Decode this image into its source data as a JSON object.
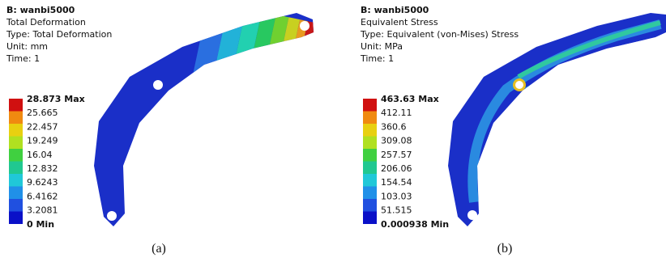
{
  "panels": [
    {
      "header": [
        "B: wanbi5000",
        "Total Deformation",
        "Type: Total Deformation",
        "Unit: mm",
        "Time: 1"
      ],
      "legend": [
        "28.873 Max",
        "25.665",
        "22.457",
        "19.249",
        "16.04",
        "12.832",
        "9.6243",
        "6.4162",
        "3.2081",
        "0 Min"
      ],
      "caption": "(a)"
    },
    {
      "header": [
        "B: wanbi5000",
        "Equivalent Stress",
        "Type: Equivalent (von-Mises) Stress",
        "Unit: MPa",
        "Time: 1"
      ],
      "legend": [
        "463.63 Max",
        "412.11",
        "360.6",
        "309.08",
        "257.57",
        "206.06",
        "154.54",
        "103.03",
        "51.515",
        "0.000938 Min"
      ],
      "caption": "(b)"
    }
  ]
}
